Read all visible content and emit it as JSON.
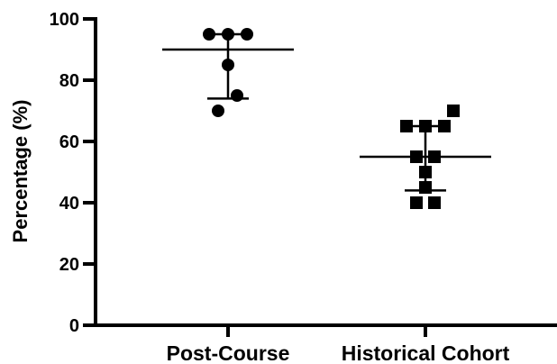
{
  "chart_data": {
    "type": "scatter",
    "ylabel": "Percentage (%)",
    "xlabel": "",
    "ylim": [
      0,
      100
    ],
    "yticks": [
      0,
      20,
      40,
      60,
      80,
      100
    ],
    "grid": false,
    "categories": [
      "Post-Course",
      "Historical Cohort"
    ],
    "series": [
      {
        "category": "Post-Course",
        "marker": "circle",
        "color": "#000000",
        "points": [
          95,
          95,
          95,
          85,
          75,
          70
        ],
        "median": 90,
        "iqr": [
          74,
          95
        ]
      },
      {
        "category": "Historical Cohort",
        "marker": "square",
        "color": "#000000",
        "points": [
          70,
          65,
          65,
          65,
          55,
          55,
          50,
          45,
          40,
          40
        ],
        "median": 55,
        "iqr": [
          44,
          65
        ]
      }
    ]
  }
}
